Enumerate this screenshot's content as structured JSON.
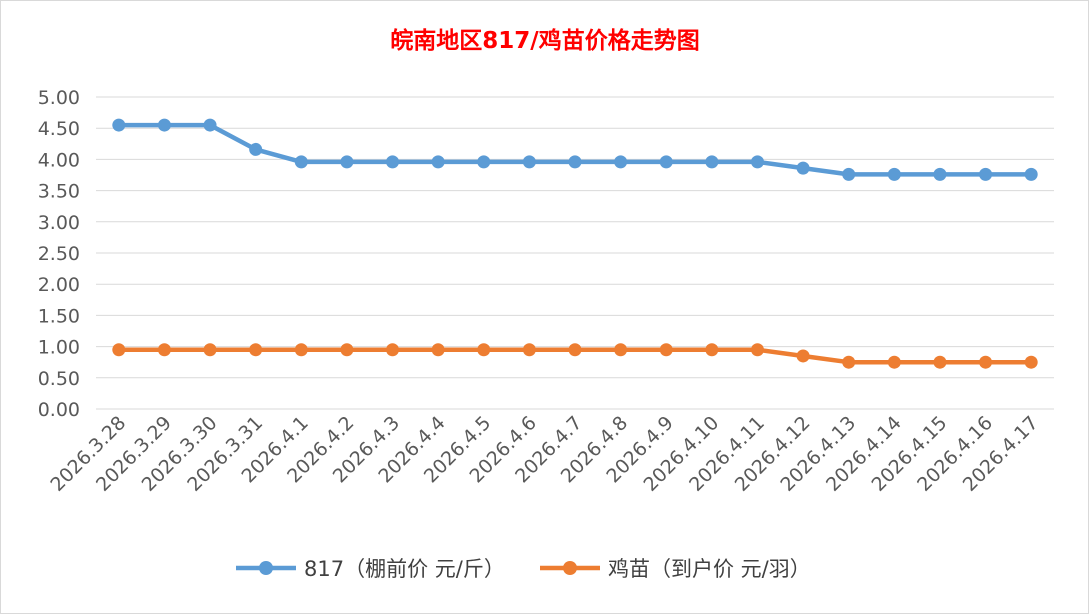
{
  "chart_data": {
    "type": "line",
    "title": "皖南地区817/鸡苗价格走势图",
    "categories": [
      "2026.3.28",
      "2026.3.29",
      "2026.3.30",
      "2026.3.31",
      "2026.4.1",
      "2026.4.2",
      "2026.4.3",
      "2026.4.4",
      "2026.4.5",
      "2026.4.6",
      "2026.4.7",
      "2026.4.8",
      "2026.4.9",
      "2026.4.10",
      "2026.4.11",
      "2026.4.12",
      "2026.4.13",
      "2026.4.14",
      "2026.4.15",
      "2026.4.16",
      "2026.4.17"
    ],
    "series": [
      {
        "name": "817（棚前价 元/斤）",
        "color": "#5B9BD5",
        "values": [
          4.55,
          4.55,
          4.55,
          4.16,
          3.96,
          3.96,
          3.96,
          3.96,
          3.96,
          3.96,
          3.96,
          3.96,
          3.96,
          3.96,
          3.96,
          3.86,
          3.76,
          3.76,
          3.76,
          3.76,
          3.76
        ]
      },
      {
        "name": "鸡苗（到户价 元/羽）",
        "color": "#ED7D31",
        "values": [
          0.95,
          0.95,
          0.95,
          0.95,
          0.95,
          0.95,
          0.95,
          0.95,
          0.95,
          0.95,
          0.95,
          0.95,
          0.95,
          0.95,
          0.95,
          0.85,
          0.75,
          0.75,
          0.75,
          0.75,
          0.75
        ]
      }
    ],
    "y_ticks": [
      "0.00",
      "0.50",
      "1.00",
      "1.50",
      "2.00",
      "2.50",
      "3.00",
      "3.50",
      "4.00",
      "4.50",
      "5.00"
    ],
    "ylim": [
      0,
      5
    ],
    "grid": true,
    "legend_position": "bottom",
    "title_color": "#FF0000"
  }
}
